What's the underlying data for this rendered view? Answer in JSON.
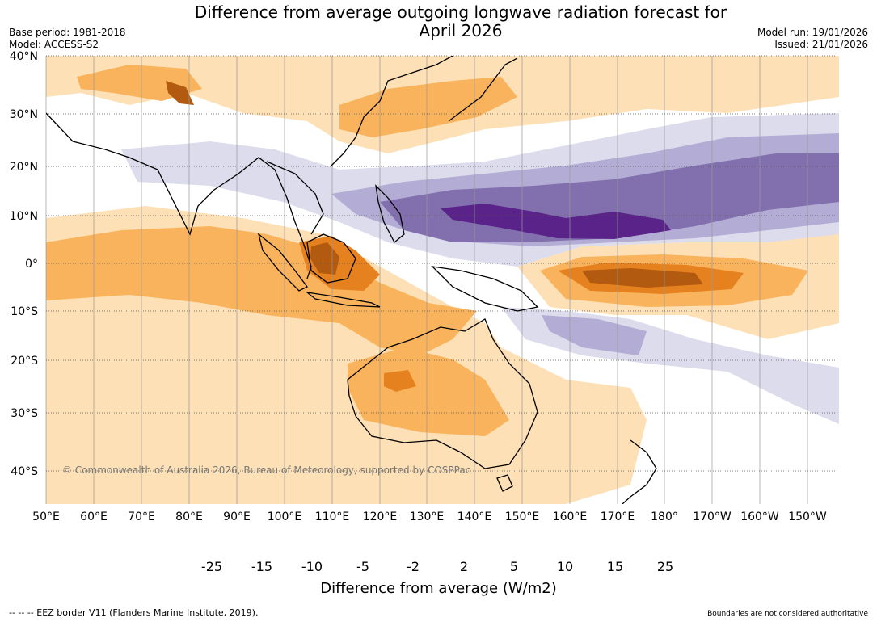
{
  "title_line1": "Difference from average outgoing longwave radiation forecast for",
  "title_line2": "April 2026",
  "base_period": "Base period: 1981-2018",
  "model": "Model: ACCESS-S2",
  "model_run": "Model run: 19/01/2026",
  "issued": "Issued: 21/01/2026",
  "copyright": "© Commonwealth of Australia 2026, Bureau of Meteorology, supported by COSPPac",
  "lat_labels": [
    "40°N",
    "30°N",
    "20°N",
    "10°N",
    "0°",
    "10°S",
    "20°S",
    "30°S",
    "40°S"
  ],
  "lon_labels": [
    "50°E",
    "60°E",
    "70°E",
    "80°E",
    "90°E",
    "100°E",
    "110°E",
    "120°E",
    "130°E",
    "140°E",
    "150°E",
    "160°E",
    "170°E",
    "180°",
    "170°W",
    "160°W",
    "150°W"
  ],
  "colorbar": {
    "ticks": [
      "-25",
      "-15",
      "-10",
      "-5",
      "-2",
      "2",
      "5",
      "10",
      "15",
      "25"
    ],
    "colors": [
      "#2d0f4a",
      "#59238a",
      "#8270ae",
      "#b3acd4",
      "#dcdced",
      "#ffffff",
      "#fde0b5",
      "#f9b35c",
      "#e6811f",
      "#b25a0f",
      "#7c3e0d"
    ],
    "label": "Difference from average (W/m2)"
  },
  "footer_left": "--  --  -- EEZ border V11 (Flanders Marine Institute, 2019).",
  "footer_right": "Boundaries are not considered authoritative"
}
